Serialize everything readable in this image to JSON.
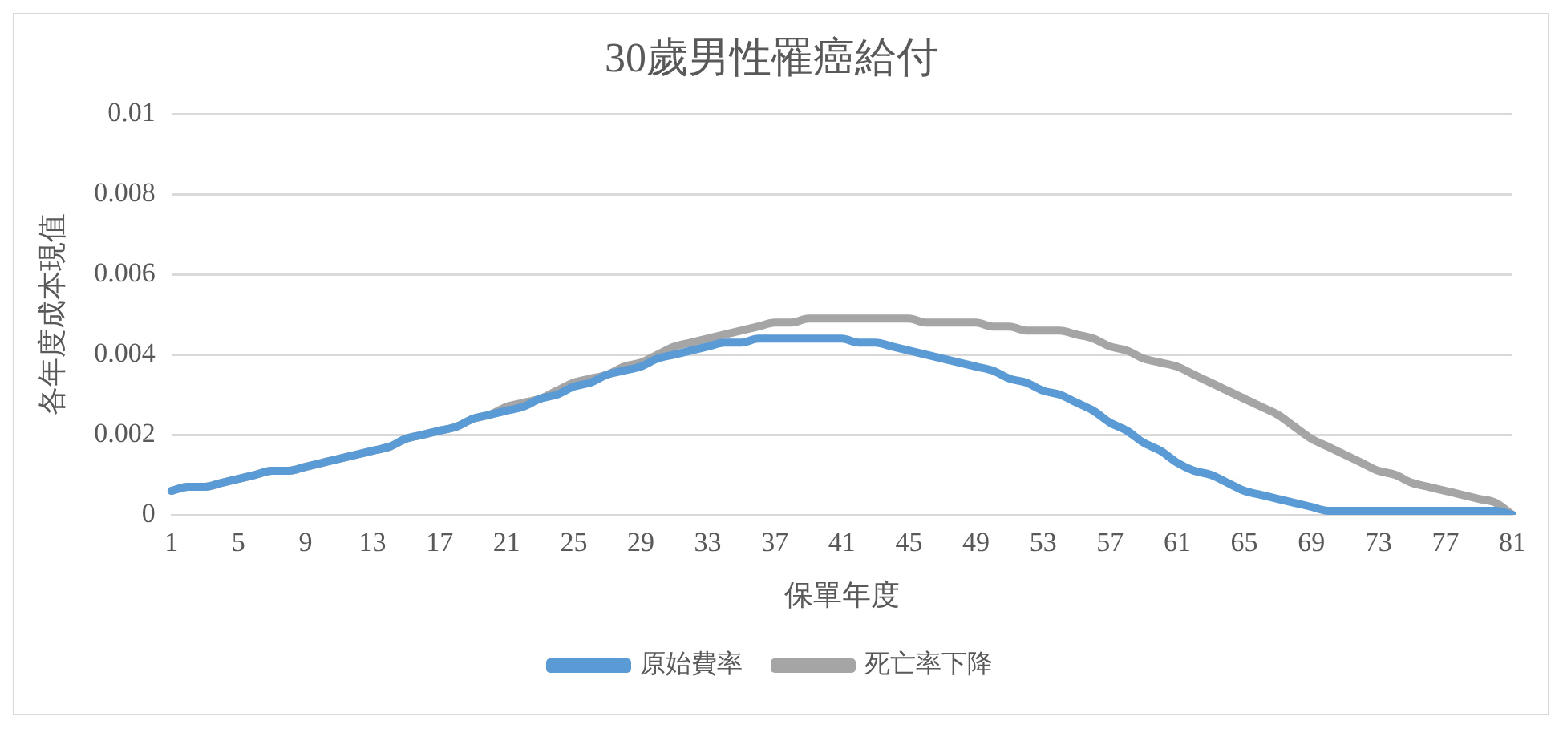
{
  "chart_data": {
    "type": "line",
    "title": "30歲男性罹癌給付",
    "xlabel": "保單年度",
    "ylabel": "各年度成本現值",
    "categories": [
      "1",
      null,
      null,
      null,
      "5",
      null,
      null,
      null,
      "9",
      null,
      null,
      null,
      "13",
      null,
      null,
      null,
      "17",
      null,
      null,
      null,
      "21",
      null,
      null,
      null,
      "25",
      null,
      null,
      null,
      "29",
      null,
      null,
      null,
      "33",
      null,
      null,
      null,
      "37",
      null,
      null,
      null,
      "41",
      null,
      null,
      null,
      "45",
      null,
      null,
      null,
      "49",
      null,
      null,
      null,
      "53",
      null,
      null,
      null,
      "57",
      null,
      null,
      null,
      "61",
      null,
      null,
      null,
      "65",
      null,
      null,
      null,
      "69",
      null,
      null,
      null,
      "73",
      null,
      null,
      null,
      "77",
      null,
      null,
      null,
      "81"
    ],
    "series": [
      {
        "name": "原始費率",
        "color": "#5b9bd5",
        "values": [
          0.0006,
          0.0007,
          0.0007,
          0.0008,
          0.0009,
          0.001,
          0.0011,
          0.0011,
          0.0012,
          0.0013,
          0.0014,
          0.0015,
          0.0016,
          0.0017,
          0.0019,
          0.002,
          0.0021,
          0.0022,
          0.0024,
          0.0025,
          0.0026,
          0.0027,
          0.0029,
          0.003,
          0.0032,
          0.0033,
          0.0035,
          0.0036,
          0.0037,
          0.0039,
          0.004,
          0.0041,
          0.0042,
          0.0043,
          0.0043,
          0.0044,
          0.0044,
          0.0044,
          0.0044,
          0.0044,
          0.0044,
          0.0043,
          0.0043,
          0.0042,
          0.0041,
          0.004,
          0.0039,
          0.0038,
          0.0037,
          0.0036,
          0.0034,
          0.0033,
          0.0031,
          0.003,
          0.0028,
          0.0026,
          0.0023,
          0.0021,
          0.0018,
          0.0016,
          0.0013,
          0.0011,
          0.001,
          0.0008,
          0.0006,
          0.0005,
          0.0004,
          0.0003,
          0.0002,
          0.0001,
          0.0001,
          0.0001,
          0.0001,
          0.0001,
          0.0001,
          0.0001,
          0.0001,
          0.0001,
          0.0001,
          0.0001,
          0
        ]
      },
      {
        "name": "死亡率下降",
        "color": "#a5a5a5",
        "values": [
          0.0006,
          0.0007,
          0.0007,
          0.0008,
          0.0009,
          0.001,
          0.0011,
          0.0011,
          0.0012,
          0.0013,
          0.0014,
          0.0015,
          0.0016,
          0.0017,
          0.0019,
          0.002,
          0.0021,
          0.0022,
          0.0024,
          0.0025,
          0.0027,
          0.0028,
          0.0029,
          0.0031,
          0.0033,
          0.0034,
          0.0035,
          0.0037,
          0.0038,
          0.004,
          0.0042,
          0.0043,
          0.0044,
          0.0045,
          0.0046,
          0.0047,
          0.0048,
          0.0048,
          0.0049,
          0.0049,
          0.0049,
          0.0049,
          0.0049,
          0.0049,
          0.0049,
          0.0048,
          0.0048,
          0.0048,
          0.0048,
          0.0047,
          0.0047,
          0.0046,
          0.0046,
          0.0046,
          0.0045,
          0.0044,
          0.0042,
          0.0041,
          0.0039,
          0.0038,
          0.0037,
          0.0035,
          0.0033,
          0.0031,
          0.0029,
          0.0027,
          0.0025,
          0.0022,
          0.0019,
          0.0017,
          0.0015,
          0.0013,
          0.0011,
          0.001,
          0.0008,
          0.0007,
          0.0006,
          0.0005,
          0.0004,
          0.0003,
          0
        ]
      }
    ],
    "ylim": [
      0,
      0.01
    ],
    "yticks": [
      0,
      0.002,
      0.004,
      0.006,
      0.008,
      0.01
    ],
    "grid": "y",
    "legend": "bottom",
    "marker": "none",
    "line_style": "solid"
  }
}
